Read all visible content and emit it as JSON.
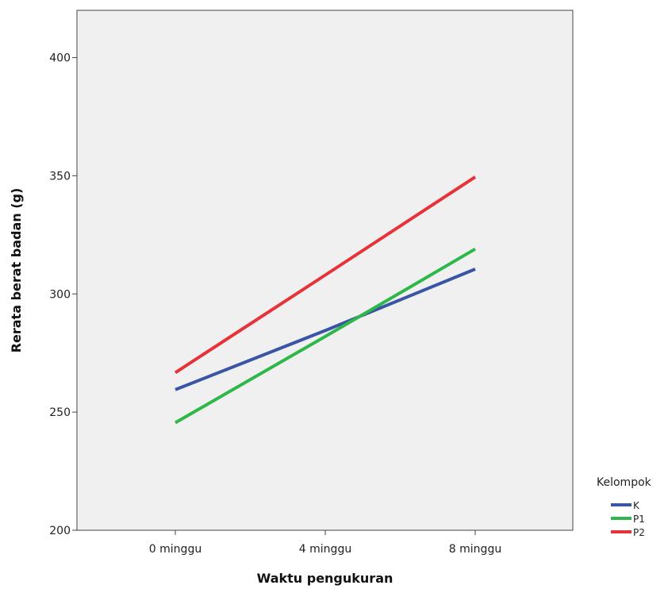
{
  "chart_data": {
    "type": "line",
    "title": "",
    "xlabel": "Waktu pengukuran",
    "ylabel": "Rerata berat badan  (g)",
    "categories": [
      "0 minggu",
      "4 minggu",
      "8 minggu"
    ],
    "ylim": [
      200,
      420
    ],
    "yticks": [
      200,
      250,
      300,
      350,
      400
    ],
    "grid": false,
    "legend": {
      "title": "Kelompok",
      "placement": "right-bottom"
    },
    "series": [
      {
        "name": "K",
        "color": "#3a55a4",
        "values": [
          259.5,
          284.5,
          310.5
        ]
      },
      {
        "name": "P1",
        "color": "#2eb84a",
        "values": [
          245.5,
          282.0,
          319.0
        ]
      },
      {
        "name": "P2",
        "color": "#e8323a",
        "values": [
          266.7,
          308.0,
          349.5
        ]
      }
    ],
    "colors": {
      "plot_background": "#f0f0f0",
      "axis": "#444444"
    }
  }
}
